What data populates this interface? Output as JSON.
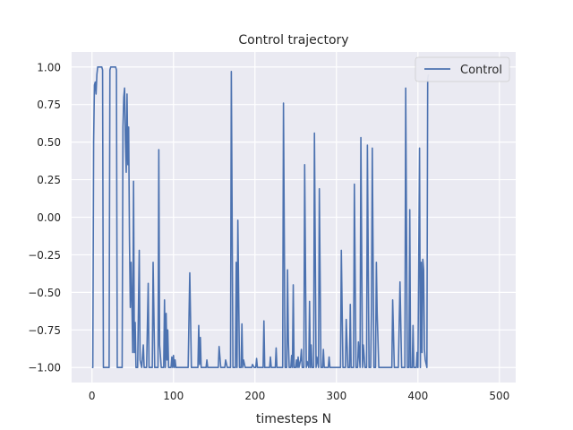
{
  "chart_data": {
    "type": "line",
    "title": "Control trajectory",
    "xlabel": "timesteps N",
    "ylabel": "",
    "xlim": [
      -25,
      520
    ],
    "ylim": [
      -1.1,
      1.1
    ],
    "grid": true,
    "legend_position": "top-right",
    "x_ticks": [
      0,
      100,
      200,
      300,
      400,
      500
    ],
    "x_tick_labels": [
      "0",
      "100",
      "200",
      "300",
      "400",
      "500"
    ],
    "y_ticks": [
      1.0,
      0.75,
      0.5,
      0.25,
      0.0,
      -0.25,
      -0.5,
      -0.75,
      -1.0
    ],
    "y_tick_labels": [
      "1.00",
      "0.75",
      "0.50",
      "0.25",
      "0.00",
      "−0.25",
      "−0.50",
      "−0.75",
      "−1.00"
    ],
    "series": [
      {
        "name": "Control",
        "color": "#4c72b0",
        "points": [
          [
            0,
            -1
          ],
          [
            1,
            -1
          ],
          [
            2,
            0.5
          ],
          [
            3,
            0.88
          ],
          [
            4,
            0.9
          ],
          [
            5,
            0.82
          ],
          [
            6,
            0.95
          ],
          [
            7,
            1
          ],
          [
            12,
            1
          ],
          [
            13,
            0.98
          ],
          [
            14,
            -1
          ],
          [
            21,
            -1
          ],
          [
            22,
            0.98
          ],
          [
            23,
            1
          ],
          [
            29,
            1
          ],
          [
            30,
            0.98
          ],
          [
            31,
            -1
          ],
          [
            37,
            -1
          ],
          [
            38,
            0.6
          ],
          [
            39,
            0.8
          ],
          [
            40,
            0.86
          ],
          [
            41,
            0.5
          ],
          [
            42,
            0.3
          ],
          [
            43,
            0.82
          ],
          [
            44,
            0.35
          ],
          [
            45,
            0.6
          ],
          [
            46,
            -0.15
          ],
          [
            47,
            -0.6
          ],
          [
            48,
            -0.3
          ],
          [
            49,
            -0.58
          ],
          [
            50,
            -0.9
          ],
          [
            51,
            0.24
          ],
          [
            52,
            -0.9
          ],
          [
            53,
            -0.7
          ],
          [
            54,
            -1
          ],
          [
            56,
            -1
          ],
          [
            58,
            -0.22
          ],
          [
            59,
            -0.95
          ],
          [
            61,
            -1
          ],
          [
            63,
            -0.85
          ],
          [
            64,
            -1
          ],
          [
            67,
            -1
          ],
          [
            69,
            -0.44
          ],
          [
            70,
            -1
          ],
          [
            74,
            -1
          ],
          [
            75,
            -0.3
          ],
          [
            77,
            -1
          ],
          [
            81,
            -1
          ],
          [
            82,
            0.45
          ],
          [
            83,
            -0.85
          ],
          [
            85,
            -1
          ],
          [
            88,
            -1
          ],
          [
            89,
            -0.55
          ],
          [
            90,
            -1
          ],
          [
            91,
            -0.64
          ],
          [
            92,
            -0.95
          ],
          [
            93,
            -0.75
          ],
          [
            94,
            -1
          ],
          [
            97,
            -1
          ],
          [
            98,
            -0.93
          ],
          [
            99,
            -1
          ],
          [
            100,
            -0.92
          ],
          [
            101,
            -1
          ],
          [
            102,
            -0.95
          ],
          [
            103,
            -1
          ],
          [
            118,
            -1
          ],
          [
            120,
            -0.37
          ],
          [
            122,
            -1
          ],
          [
            130,
            -1
          ],
          [
            131,
            -0.72
          ],
          [
            132,
            -0.98
          ],
          [
            133,
            -0.8
          ],
          [
            134,
            -1
          ],
          [
            140,
            -1
          ],
          [
            141,
            -0.95
          ],
          [
            142,
            -1
          ],
          [
            155,
            -1
          ],
          [
            156,
            -0.86
          ],
          [
            158,
            -1
          ],
          [
            163,
            -1
          ],
          [
            164,
            -0.95
          ],
          [
            166,
            -1
          ],
          [
            170,
            -1
          ],
          [
            171,
            0.97
          ],
          [
            173,
            -1
          ],
          [
            176,
            -1
          ],
          [
            177,
            -0.3
          ],
          [
            178,
            -1
          ],
          [
            179,
            -0.02
          ],
          [
            181,
            -1
          ],
          [
            183,
            -1
          ],
          [
            184,
            -0.71
          ],
          [
            185,
            -1
          ],
          [
            186,
            -0.95
          ],
          [
            188,
            -1
          ],
          [
            196,
            -1
          ],
          [
            197,
            -0.98
          ],
          [
            199,
            -1
          ],
          [
            201,
            -1
          ],
          [
            202,
            -0.94
          ],
          [
            203,
            -1
          ],
          [
            210,
            -1
          ],
          [
            211,
            -0.69
          ],
          [
            212,
            -1
          ],
          [
            218,
            -1
          ],
          [
            219,
            -0.93
          ],
          [
            220,
            -1
          ],
          [
            225,
            -1
          ],
          [
            226,
            -0.87
          ],
          [
            227,
            -1
          ],
          [
            234,
            -1
          ],
          [
            235,
            0.76
          ],
          [
            237,
            -1
          ],
          [
            239,
            -1
          ],
          [
            240,
            -0.35
          ],
          [
            241,
            -0.82
          ],
          [
            242,
            -1
          ],
          [
            244,
            -1
          ],
          [
            245,
            -0.92
          ],
          [
            246,
            -1
          ],
          [
            247,
            -0.45
          ],
          [
            248,
            -1
          ],
          [
            250,
            -1
          ],
          [
            251,
            -0.95
          ],
          [
            252,
            -1
          ],
          [
            253,
            -0.93
          ],
          [
            254,
            -1
          ],
          [
            256,
            -0.95
          ],
          [
            257,
            -0.88
          ],
          [
            258,
            -1
          ],
          [
            260,
            -1
          ],
          [
            261,
            0.35
          ],
          [
            263,
            -1
          ],
          [
            264,
            -0.96
          ],
          [
            266,
            -1
          ],
          [
            267,
            -0.56
          ],
          [
            268,
            -1
          ],
          [
            269,
            -0.85
          ],
          [
            270,
            -1
          ],
          [
            272,
            -1
          ],
          [
            273,
            0.56
          ],
          [
            275,
            -1
          ],
          [
            276,
            -0.93
          ],
          [
            278,
            -1
          ],
          [
            279,
            0.19
          ],
          [
            281,
            -1
          ],
          [
            283,
            -1
          ],
          [
            284,
            -0.88
          ],
          [
            285,
            -1
          ],
          [
            290,
            -1
          ],
          [
            291,
            -0.93
          ],
          [
            292,
            -1
          ],
          [
            305,
            -1
          ],
          [
            306,
            -0.22
          ],
          [
            308,
            -1
          ],
          [
            311,
            -1
          ],
          [
            312,
            -0.68
          ],
          [
            314,
            -1
          ],
          [
            316,
            -1
          ],
          [
            317,
            -0.58
          ],
          [
            318,
            -1
          ],
          [
            321,
            -1
          ],
          [
            322,
            0.22
          ],
          [
            324,
            -1
          ],
          [
            326,
            -1
          ],
          [
            327,
            -0.83
          ],
          [
            329,
            -1
          ],
          [
            330,
            0.53
          ],
          [
            332,
            -1
          ],
          [
            333,
            -0.85
          ],
          [
            335,
            -1
          ],
          [
            337,
            -1
          ],
          [
            338,
            0.48
          ],
          [
            340,
            -1
          ],
          [
            342,
            -1
          ],
          [
            343,
            -0.6
          ],
          [
            344,
            0.46
          ],
          [
            346,
            -1
          ],
          [
            348,
            -1
          ],
          [
            349,
            -0.3
          ],
          [
            350,
            -0.64
          ],
          [
            352,
            -1
          ],
          [
            368,
            -1
          ],
          [
            369,
            -0.55
          ],
          [
            371,
            -1
          ],
          [
            376,
            -1
          ],
          [
            378,
            -0.43
          ],
          [
            380,
            -1
          ],
          [
            384,
            -1
          ],
          [
            385,
            0.86
          ],
          [
            387,
            -1
          ],
          [
            389,
            -1
          ],
          [
            390,
            0.05
          ],
          [
            391,
            -1
          ],
          [
            393,
            -1
          ],
          [
            394,
            -0.72
          ],
          [
            395,
            -1
          ],
          [
            398,
            -1
          ],
          [
            399,
            -0.9
          ],
          [
            400,
            -1
          ],
          [
            402,
            0.46
          ],
          [
            403,
            -1
          ],
          [
            404,
            -0.3
          ],
          [
            405,
            -0.9
          ],
          [
            406,
            -0.28
          ],
          [
            407,
            -0.35
          ],
          [
            408,
            -0.88
          ],
          [
            409,
            -0.95
          ],
          [
            411,
            -1
          ],
          [
            412,
            0.92
          ],
          [
            413,
            0.95
          ]
        ]
      }
    ]
  }
}
